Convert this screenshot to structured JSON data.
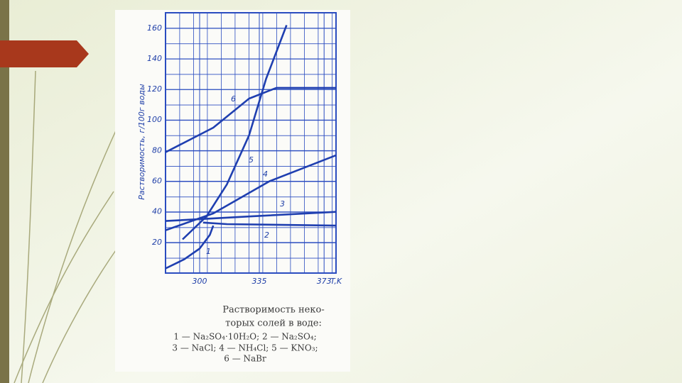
{
  "chart_data": {
    "type": "line",
    "y_label": "Растворимость, г/100г воды",
    "x_label": "T,K",
    "xlim": [
      280,
      380
    ],
    "ylim": [
      0,
      165
    ],
    "xticks": [
      300,
      335,
      373
    ],
    "yticks": [
      20,
      40,
      60,
      80,
      100,
      120,
      140,
      160
    ],
    "grid": true,
    "color": "#1f3fb0",
    "series": [
      {
        "name": "1",
        "x": [
          280,
          291,
          300,
          306,
          308
        ],
        "values": [
          3,
          9,
          16,
          25,
          31
        ]
      },
      {
        "name": "2",
        "x": [
          302,
          316,
          380
        ],
        "values": [
          33,
          32,
          31
        ]
      },
      {
        "name": "3",
        "x": [
          280,
          329,
          380
        ],
        "values": [
          34,
          37,
          40
        ]
      },
      {
        "name": "4",
        "x": [
          280,
          308,
          341,
          380
        ],
        "values": [
          28,
          39,
          60,
          77
        ]
      },
      {
        "name": "5",
        "x": [
          290,
          304,
          316,
          329,
          339,
          351
        ],
        "values": [
          22,
          37,
          58,
          90,
          127,
          162
        ]
      },
      {
        "name": "6",
        "x": [
          280,
          308,
          329,
          345,
          380
        ],
        "values": [
          79,
          95,
          114,
          121,
          121
        ]
      }
    ],
    "caption": [
      "Растворимость неко-",
      "торых солей в воде:",
      "1 — Na₂SO₄·10H₂O;  2 — Na₂SO₄;",
      "3 — NaCl;  4 — NH₄Cl;  5 — KNO₃;",
      "6 — NaBr"
    ]
  }
}
